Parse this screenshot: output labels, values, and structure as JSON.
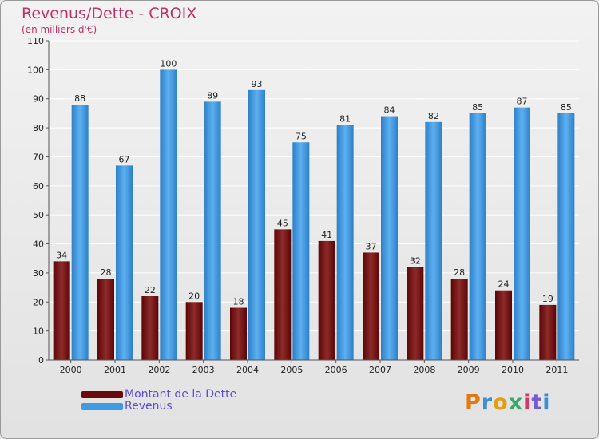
{
  "title": "Revenus/Dette - CROIX",
  "subtitle": "(en milliers d'€)",
  "logo": "Proxiti",
  "colors": {
    "dette": "#6b0a0a",
    "revenus": "#3d9ae3",
    "title": "#c0306a",
    "legend_text": "#5a4ad8"
  },
  "chart_data": {
    "type": "bar",
    "title": "Revenus/Dette - CROIX",
    "ylabel": "(en milliers d'€)",
    "xlabel": "",
    "categories": [
      "2000",
      "2001",
      "2002",
      "2003",
      "2004",
      "2005",
      "2006",
      "2007",
      "2008",
      "2009",
      "2010",
      "2011"
    ],
    "series": [
      {
        "name": "Montant de la Dette",
        "values": [
          34,
          28,
          22,
          20,
          18,
          45,
          41,
          37,
          32,
          28,
          24,
          19
        ]
      },
      {
        "name": "Revenus",
        "values": [
          88,
          67,
          100,
          89,
          93,
          75,
          81,
          84,
          82,
          85,
          87,
          85
        ]
      }
    ],
    "ylim": [
      0,
      110
    ],
    "yticks": [
      0,
      10,
      20,
      30,
      40,
      50,
      60,
      70,
      80,
      90,
      100,
      110
    ],
    "grid": true,
    "legend": "bottom-left"
  }
}
